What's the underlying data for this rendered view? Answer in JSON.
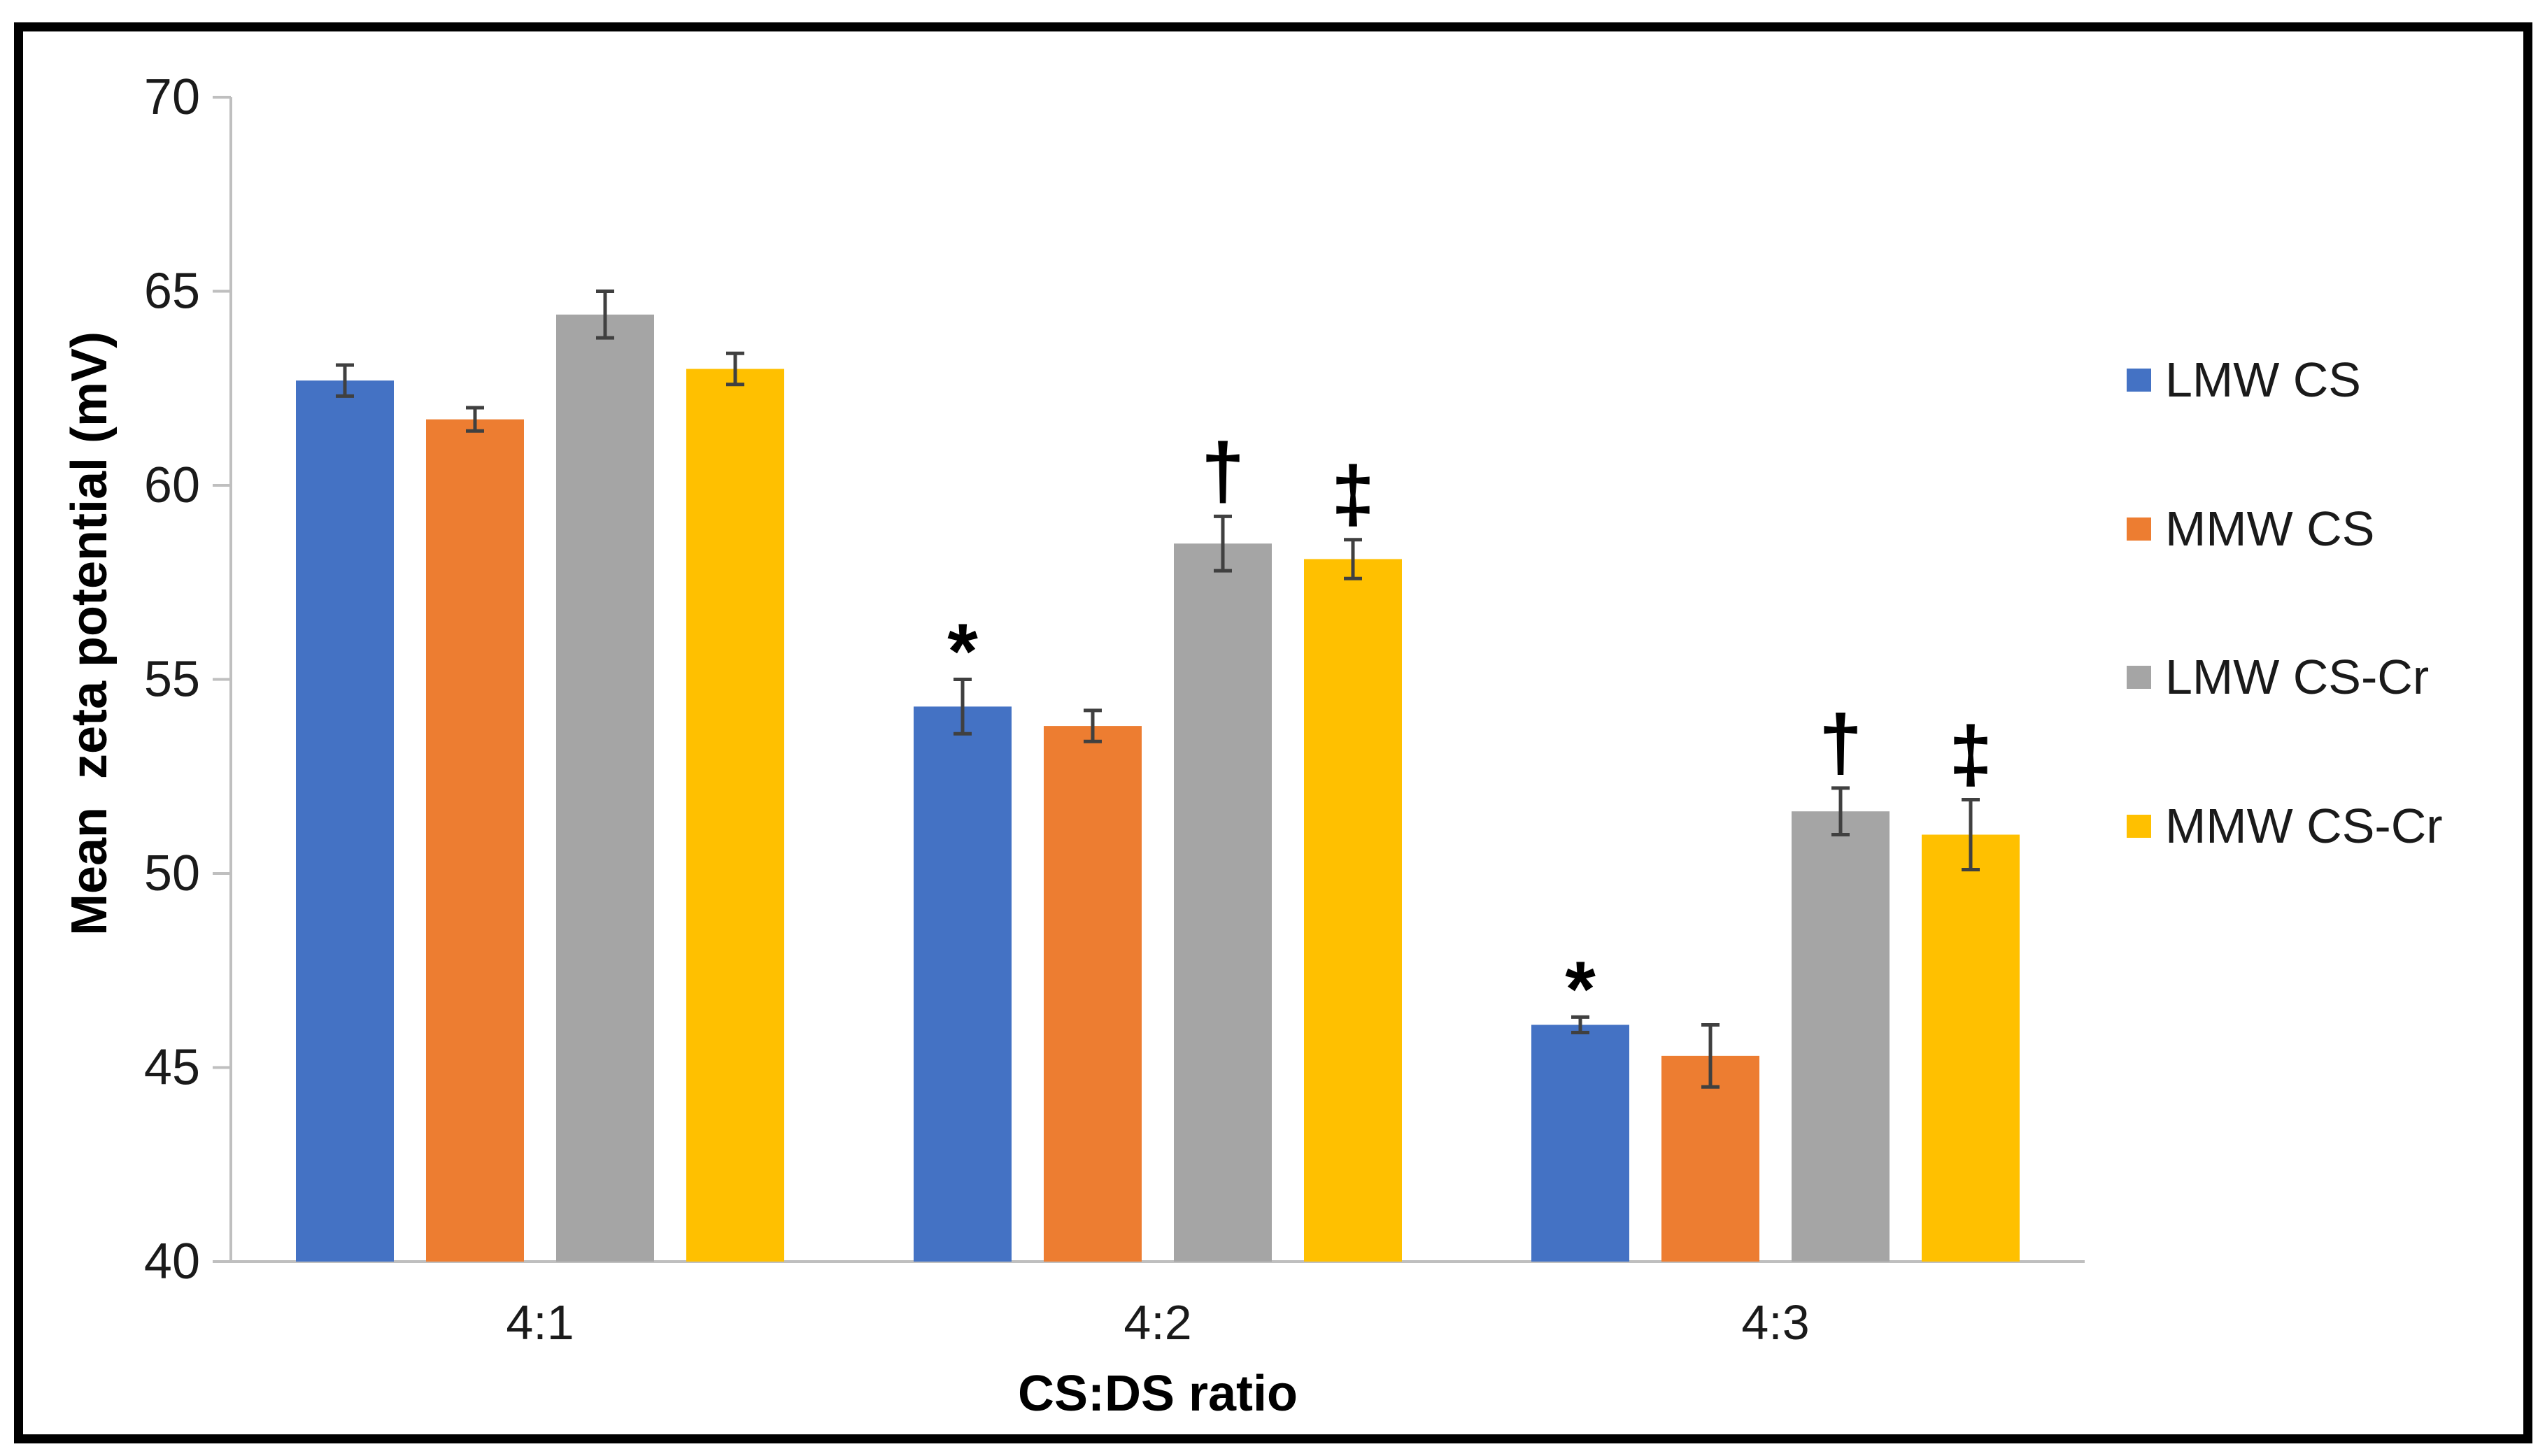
{
  "chart_data": {
    "type": "bar",
    "title": "",
    "xlabel": "CS:DS ratio",
    "ylabel": "Mean  zeta potential (mV)",
    "categories": [
      "4:1",
      "4:2",
      "4:3"
    ],
    "ylim": [
      40,
      70
    ],
    "y_ticks": [
      40,
      45,
      50,
      55,
      60,
      65,
      70
    ],
    "grid": false,
    "legend_position": "right",
    "value_unit": "mV",
    "series": [
      {
        "name": "LMW CS",
        "color": "#4472C4",
        "values": [
          62.7,
          54.3,
          46.1
        ],
        "errors": [
          0.4,
          0.7,
          0.2
        ],
        "annotations": [
          "",
          "*",
          "*"
        ]
      },
      {
        "name": "MMW CS",
        "color": "#ED7D31",
        "values": [
          61.7,
          53.8,
          45.3
        ],
        "errors": [
          0.3,
          0.4,
          0.8
        ],
        "annotations": [
          "",
          "",
          ""
        ]
      },
      {
        "name": "LMW CS-Cr",
        "color": "#A5A5A5",
        "values": [
          64.4,
          58.5,
          51.6
        ],
        "errors": [
          0.6,
          0.7,
          0.6
        ],
        "annotations": [
          "",
          "†",
          "†"
        ]
      },
      {
        "name": "MMW CS-Cr",
        "color": "#FFC000",
        "values": [
          63.0,
          58.1,
          51.0
        ],
        "errors": [
          0.4,
          0.5,
          0.9
        ],
        "annotations": [
          "",
          "‡",
          "‡"
        ]
      }
    ],
    "annotation_symbols": {
      "asterisk": "*",
      "dagger": "†",
      "double_dagger": "‡"
    },
    "colors": {
      "axis": "#BFBFBF",
      "error_bar": "#404040",
      "text": "#1a1a1a",
      "frame": "#000000",
      "background": "#FFFFFF"
    }
  }
}
